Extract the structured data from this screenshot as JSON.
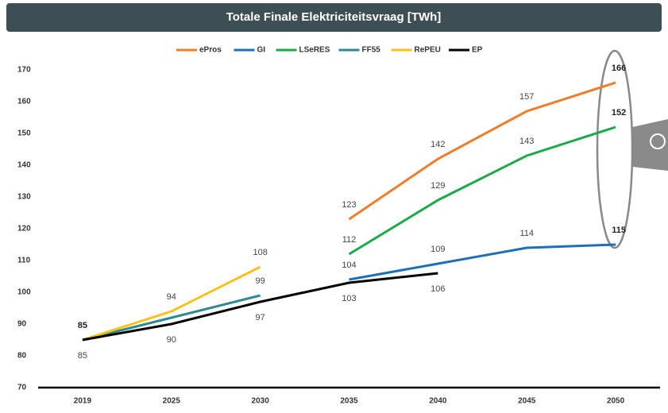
{
  "chart_data": {
    "type": "line",
    "title": "Totale Finale Elektriciteitsvraag [TWh]",
    "categories": [
      "2019",
      "2025",
      "2030",
      "2035",
      "2040",
      "2045",
      "2050"
    ],
    "ylim": [
      70,
      170
    ],
    "yticks": [
      70,
      80,
      90,
      100,
      110,
      120,
      130,
      140,
      150,
      160,
      170
    ],
    "legend": "top",
    "series": [
      {
        "name": "ePros",
        "color": "#f07d2a",
        "values": [
          null,
          null,
          null,
          123,
          142,
          157,
          166
        ],
        "value_labels": [
          null,
          null,
          null,
          "123",
          "142",
          "157",
          "166"
        ]
      },
      {
        "name": "GI",
        "color": "#1f6fb5",
        "values": [
          null,
          null,
          null,
          104,
          109,
          114,
          115
        ],
        "value_labels": [
          null,
          null,
          null,
          "104",
          "109",
          "114",
          "115"
        ]
      },
      {
        "name": "LSeRES",
        "color": "#1aaa4a",
        "values": [
          null,
          null,
          null,
          112,
          129,
          143,
          152
        ],
        "value_labels": [
          null,
          null,
          null,
          "112",
          "129",
          "143",
          "152"
        ]
      },
      {
        "name": "FF55",
        "color": "#2f8a8f",
        "values": [
          85,
          92,
          99,
          null,
          null,
          null,
          null
        ],
        "value_labels": [
          null,
          null,
          "99",
          null,
          null,
          null,
          null
        ]
      },
      {
        "name": "RePEU",
        "color": "#f9c21a",
        "values": [
          85,
          94,
          108,
          null,
          null,
          null,
          null
        ],
        "value_labels": [
          "85",
          "94",
          "108",
          null,
          null,
          null,
          null
        ]
      },
      {
        "name": "EP",
        "color": "#000000",
        "values": [
          85,
          90,
          97,
          103,
          106,
          null,
          null
        ],
        "value_labels": [
          "85",
          "90",
          "97",
          "103",
          "106",
          null,
          null
        ]
      }
    ]
  }
}
